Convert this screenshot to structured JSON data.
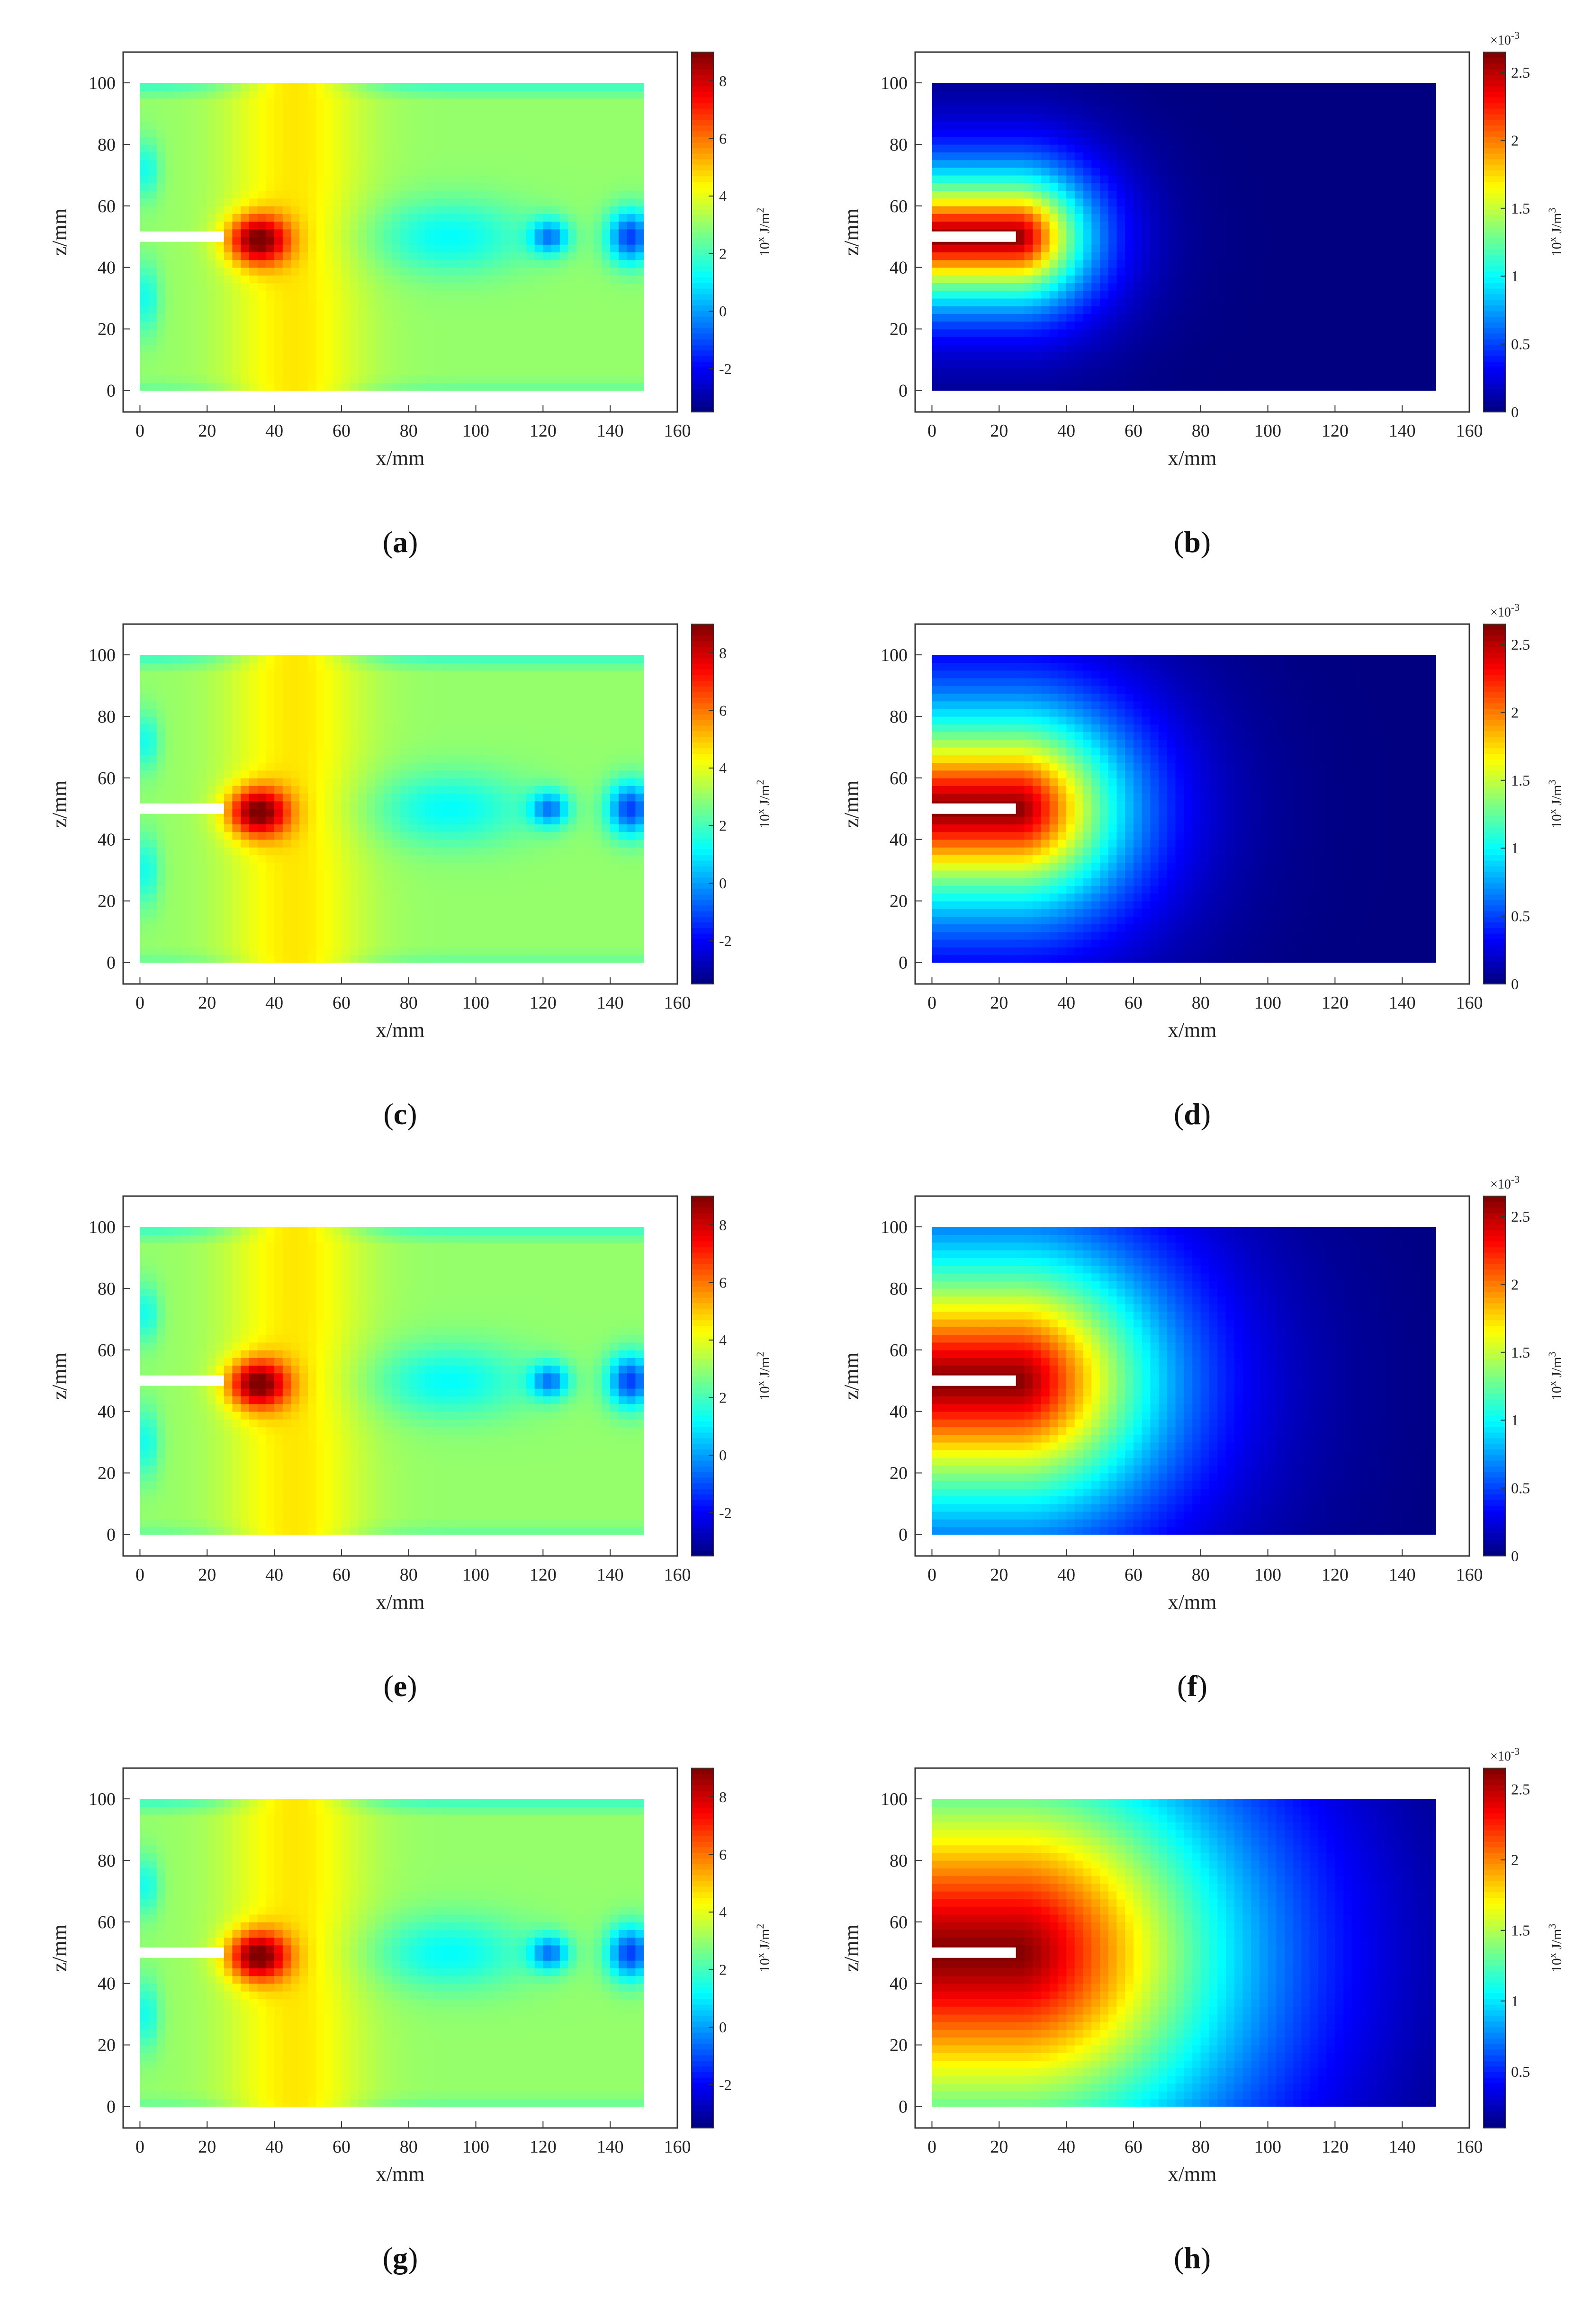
{
  "chart_data": [
    {
      "id": "a",
      "type": "heatmap",
      "caption_letter": "a",
      "xlabel": "x/mm",
      "ylabel": "z/mm",
      "xticks": [
        0,
        20,
        40,
        60,
        80,
        100,
        120,
        140,
        160
      ],
      "yticks": [
        0,
        20,
        40,
        60,
        80,
        100
      ],
      "xlim": [
        -5,
        160
      ],
      "ylim": [
        -7,
        110
      ],
      "field_extent_x": [
        0,
        150
      ],
      "field_extent_y": [
        0,
        100
      ],
      "crack": {
        "x": [
          0,
          25
        ],
        "z": 50
      },
      "colorbar": {
        "label": "10^x J/m^2",
        "label_base": "10",
        "label_sup": "x",
        "label_unit": " J/m",
        "label_unit_sup": "2",
        "range": [
          -3.5,
          9
        ],
        "ticks": [
          -2,
          0,
          2,
          4,
          6,
          8
        ],
        "multiplier": ""
      },
      "field": "strain-energy-release-log"
    },
    {
      "id": "b",
      "type": "heatmap",
      "caption_letter": "b",
      "xlabel": "x/mm",
      "ylabel": "z/mm",
      "xticks": [
        0,
        20,
        40,
        60,
        80,
        100,
        120,
        140,
        160
      ],
      "yticks": [
        0,
        20,
        40,
        60,
        80,
        100
      ],
      "xlim": [
        -5,
        160
      ],
      "ylim": [
        -7,
        110
      ],
      "field_extent_x": [
        0,
        150
      ],
      "field_extent_y": [
        0,
        100
      ],
      "crack": {
        "x": [
          0,
          25
        ],
        "z": 50
      },
      "colorbar": {
        "label": "10^x J/m^3",
        "label_base": "10",
        "label_sup": "x",
        "label_unit": " J/m",
        "label_unit_sup": "3",
        "range": [
          0,
          2.65
        ],
        "ticks": [
          0,
          0.5,
          1,
          1.5,
          2,
          2.5
        ],
        "multiplier": "×10",
        "multiplier_sup": "-3"
      },
      "field": "energy-density",
      "spread": 20
    },
    {
      "id": "c",
      "type": "heatmap",
      "caption_letter": "c",
      "xlabel": "x/mm",
      "ylabel": "z/mm",
      "xticks": [
        0,
        20,
        40,
        60,
        80,
        100,
        120,
        140,
        160
      ],
      "yticks": [
        0,
        20,
        40,
        60,
        80,
        100
      ],
      "xlim": [
        -5,
        160
      ],
      "ylim": [
        -7,
        110
      ],
      "field_extent_x": [
        0,
        150
      ],
      "field_extent_y": [
        0,
        100
      ],
      "crack": {
        "x": [
          0,
          25
        ],
        "z": 50
      },
      "colorbar": {
        "label": "10^x J/m^2",
        "label_base": "10",
        "label_sup": "x",
        "label_unit": " J/m",
        "label_unit_sup": "2",
        "range": [
          -3.5,
          9
        ],
        "ticks": [
          -2,
          0,
          2,
          4,
          6,
          8
        ],
        "multiplier": ""
      },
      "field": "strain-energy-release-log"
    },
    {
      "id": "d",
      "type": "heatmap",
      "caption_letter": "d",
      "xlabel": "x/mm",
      "ylabel": "z/mm",
      "xticks": [
        0,
        20,
        40,
        60,
        80,
        100,
        120,
        140,
        160
      ],
      "yticks": [
        0,
        20,
        40,
        60,
        80,
        100
      ],
      "xlim": [
        -5,
        160
      ],
      "ylim": [
        -7,
        110
      ],
      "field_extent_x": [
        0,
        150
      ],
      "field_extent_y": [
        0,
        100
      ],
      "crack": {
        "x": [
          0,
          25
        ],
        "z": 50
      },
      "colorbar": {
        "label": "10^x J/m^3",
        "label_base": "10",
        "label_sup": "x",
        "label_unit": " J/m",
        "label_unit_sup": "3",
        "range": [
          0,
          2.65
        ],
        "ticks": [
          0,
          0.5,
          1,
          1.5,
          2,
          2.5
        ],
        "multiplier": "×10",
        "multiplier_sup": "-3"
      },
      "field": "energy-density",
      "spread": 30
    },
    {
      "id": "e",
      "type": "heatmap",
      "caption_letter": "e",
      "xlabel": "x/mm",
      "ylabel": "z/mm",
      "xticks": [
        0,
        20,
        40,
        60,
        80,
        100,
        120,
        140,
        160
      ],
      "yticks": [
        0,
        20,
        40,
        60,
        80,
        100
      ],
      "xlim": [
        -5,
        160
      ],
      "ylim": [
        -7,
        110
      ],
      "field_extent_x": [
        0,
        150
      ],
      "field_extent_y": [
        0,
        100
      ],
      "crack": {
        "x": [
          0,
          25
        ],
        "z": 50
      },
      "colorbar": {
        "label": "10^x J/m^2",
        "label_base": "10",
        "label_sup": "x",
        "label_unit": " J/m",
        "label_unit_sup": "2",
        "range": [
          -3.5,
          9
        ],
        "ticks": [
          -2,
          0,
          2,
          4,
          6,
          8
        ],
        "multiplier": ""
      },
      "field": "strain-energy-release-log"
    },
    {
      "id": "f",
      "type": "heatmap",
      "caption_letter": "f",
      "xlabel": "x/mm",
      "ylabel": "z/mm",
      "xticks": [
        0,
        20,
        40,
        60,
        80,
        100,
        120,
        140,
        160
      ],
      "yticks": [
        0,
        20,
        40,
        60,
        80,
        100
      ],
      "xlim": [
        -5,
        160
      ],
      "ylim": [
        -7,
        110
      ],
      "field_extent_x": [
        0,
        150
      ],
      "field_extent_y": [
        0,
        100
      ],
      "crack": {
        "x": [
          0,
          25
        ],
        "z": 50
      },
      "colorbar": {
        "label": "10^x J/m^3",
        "label_base": "10",
        "label_sup": "x",
        "label_unit": " J/m",
        "label_unit_sup": "3",
        "range": [
          0,
          2.65
        ],
        "ticks": [
          0,
          0.5,
          1,
          1.5,
          2,
          2.5
        ],
        "multiplier": "×10",
        "multiplier_sup": "-3"
      },
      "field": "energy-density",
      "spread": 40
    },
    {
      "id": "g",
      "type": "heatmap",
      "caption_letter": "g",
      "xlabel": "x/mm",
      "ylabel": "z/mm",
      "xticks": [
        0,
        20,
        40,
        60,
        80,
        100,
        120,
        140,
        160
      ],
      "yticks": [
        0,
        20,
        40,
        60,
        80,
        100
      ],
      "xlim": [
        -5,
        160
      ],
      "ylim": [
        -7,
        110
      ],
      "field_extent_x": [
        0,
        150
      ],
      "field_extent_y": [
        0,
        100
      ],
      "crack": {
        "x": [
          0,
          25
        ],
        "z": 50
      },
      "colorbar": {
        "label": "10^x J/m^2",
        "label_base": "10",
        "label_sup": "x",
        "label_unit": " J/m",
        "label_unit_sup": "2",
        "range": [
          -3.5,
          9
        ],
        "ticks": [
          -2,
          0,
          2,
          4,
          6,
          8
        ],
        "multiplier": ""
      },
      "field": "strain-energy-release-log"
    },
    {
      "id": "h",
      "type": "heatmap",
      "caption_letter": "h",
      "xlabel": "x/mm",
      "ylabel": "z/mm",
      "xticks": [
        0,
        20,
        40,
        60,
        80,
        100,
        120,
        140,
        160
      ],
      "yticks": [
        0,
        20,
        40,
        60,
        80,
        100
      ],
      "xlim": [
        -5,
        160
      ],
      "ylim": [
        -7,
        110
      ],
      "field_extent_x": [
        0,
        150
      ],
      "field_extent_y": [
        0,
        100
      ],
      "crack": {
        "x": [
          0,
          25
        ],
        "z": 50
      },
      "colorbar": {
        "label": "10^x J/m^3",
        "label_base": "10",
        "label_sup": "x",
        "label_unit": " J/m",
        "label_unit_sup": "3",
        "range": [
          0.1,
          2.65
        ],
        "ticks": [
          0.5,
          1,
          1.5,
          2,
          2.5
        ],
        "multiplier": "×10",
        "multiplier_sup": "-3"
      },
      "field": "energy-density",
      "spread": 65
    }
  ]
}
